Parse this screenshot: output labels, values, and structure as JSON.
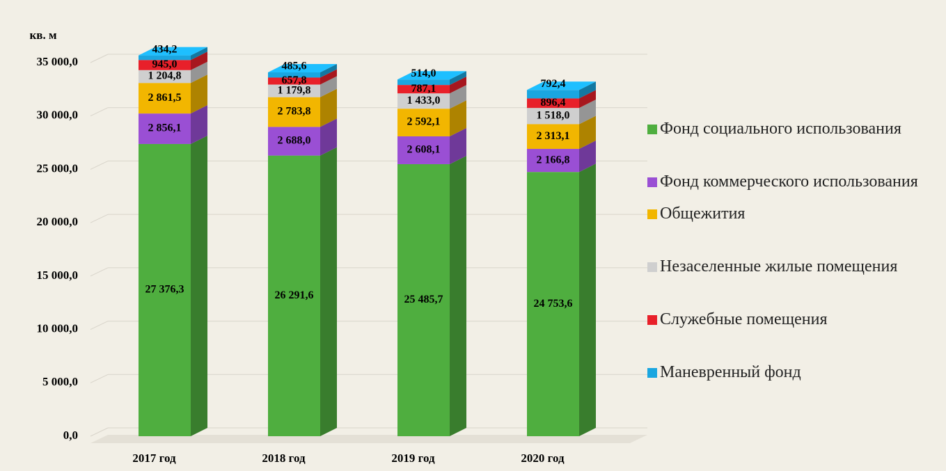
{
  "chart_data": {
    "type": "bar",
    "stacked": true,
    "y_label": "кв. м",
    "categories": [
      "2017 год",
      "2018 год",
      "2019 год",
      "2020 год"
    ],
    "series": [
      {
        "name": "Фонд социального использования",
        "color": "#4fae3f",
        "values": [
          27376.3,
          26291.6,
          25485.7,
          24753.6
        ],
        "value_labels": [
          "27 376,3",
          "26 291,6",
          "25 485,7",
          "24 753,6"
        ]
      },
      {
        "name": "Фонд коммерческого использования",
        "color": "#9a4fd4",
        "values": [
          2856.1,
          2688.0,
          2608.1,
          2166.8
        ],
        "value_labels": [
          "2 856,1",
          "2 688,0",
          "2 608,1",
          "2 166,8"
        ]
      },
      {
        "name": "Общежития",
        "color": "#f2b600",
        "values": [
          2861.5,
          2783.8,
          2592.1,
          2313.1
        ],
        "value_labels": [
          "2 861,5",
          "2 783,8",
          "2 592,1",
          "2 313,1"
        ]
      },
      {
        "name": "Незаселенные жилые помещения",
        "color": "#cfcfcf",
        "values": [
          1204.8,
          1179.8,
          1433.0,
          1518.0
        ],
        "value_labels": [
          "1 204,8",
          "1 179,8",
          "1 433,0",
          "1 518,0"
        ]
      },
      {
        "name": "Служебные помещения",
        "color": "#e8202a",
        "values": [
          945.0,
          657.8,
          787.1,
          896.4
        ],
        "value_labels": [
          "945,0",
          "657,8",
          "787,1",
          "896,4"
        ]
      },
      {
        "name": "Маневренный фонд",
        "color": "#1aa6e0",
        "values": [
          434.2,
          485.6,
          514.0,
          792.4
        ],
        "value_labels": [
          "434,2",
          "485,6",
          "514,0",
          "792,4"
        ]
      }
    ],
    "ylim": [
      0,
      35000
    ],
    "yticks": [
      {
        "value": 0,
        "label": "0,0"
      },
      {
        "value": 5000,
        "label": "5 000,0"
      },
      {
        "value": 10000,
        "label": "10 000,0"
      },
      {
        "value": 15000,
        "label": "15 000,0"
      },
      {
        "value": 20000,
        "label": "20 000,0"
      },
      {
        "value": 25000,
        "label": "25 000,0"
      },
      {
        "value": 30000,
        "label": "30 000,0"
      },
      {
        "value": 35000,
        "label": "35 000,0"
      }
    ],
    "grid": true,
    "legend": "right"
  }
}
